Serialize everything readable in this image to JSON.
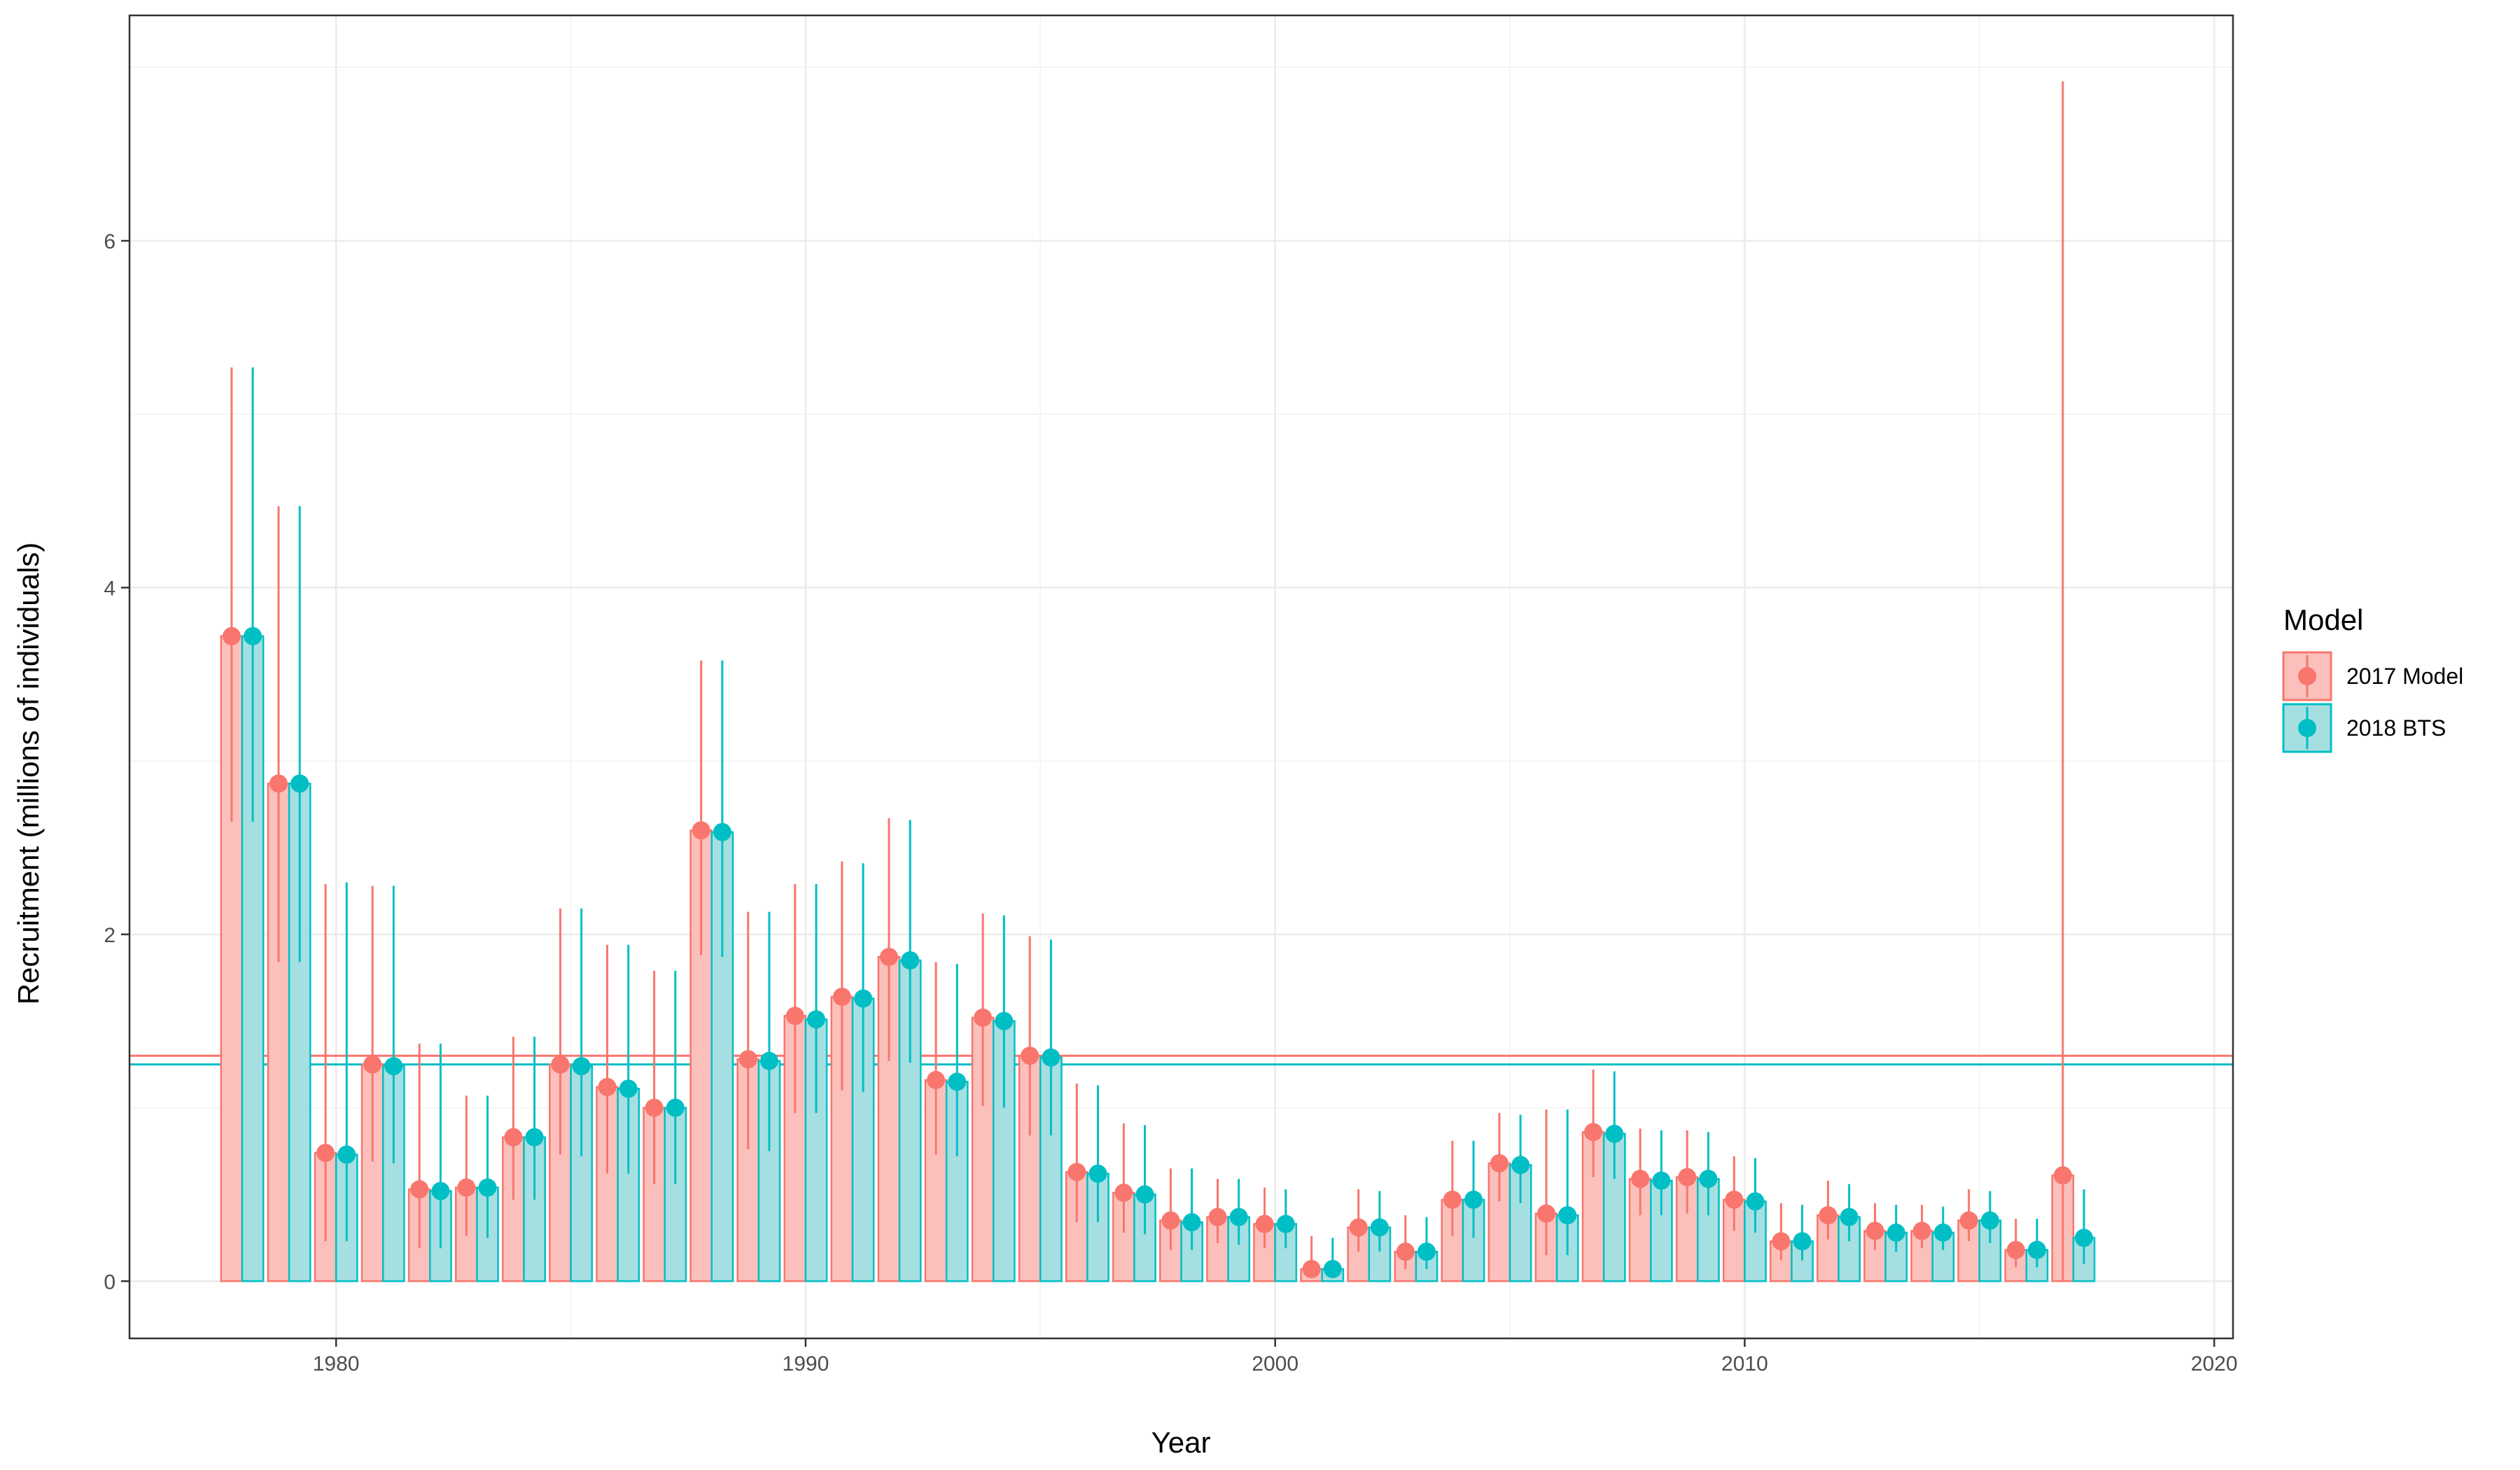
{
  "chart_data": {
    "type": "bar",
    "xlabel": "Year",
    "ylabel": "Recruitment (millions of individuals)",
    "xlim": [
      1975.6,
      2020.4
    ],
    "ylim": [
      -0.33,
      7.3
    ],
    "x_ticks": [
      1980,
      1990,
      2000,
      2010,
      2020
    ],
    "y_ticks": [
      0,
      2,
      4,
      6
    ],
    "grid": true,
    "legend": {
      "title": "Model",
      "position": "right"
    },
    "colors": {
      "2017 Model": "#F8766D",
      "2018 BTS": "#00BFC4"
    },
    "x": [
      1978,
      1979,
      1980,
      1981,
      1982,
      1983,
      1984,
      1985,
      1986,
      1987,
      1988,
      1989,
      1990,
      1991,
      1992,
      1993,
      1994,
      1995,
      1996,
      1997,
      1998,
      1999,
      2000,
      2001,
      2002,
      2003,
      2004,
      2005,
      2006,
      2007,
      2008,
      2009,
      2010,
      2011,
      2012,
      2013,
      2014,
      2015,
      2016,
      2017
    ],
    "series": [
      {
        "name": "2017 Model",
        "values": [
          3.72,
          2.87,
          0.74,
          1.25,
          0.53,
          0.54,
          0.83,
          1.25,
          1.12,
          1.0,
          2.6,
          1.28,
          1.53,
          1.64,
          1.87,
          1.16,
          1.52,
          1.3,
          0.63,
          0.51,
          0.35,
          0.37,
          0.33,
          0.07,
          0.31,
          0.17,
          0.47,
          0.68,
          0.39,
          0.86,
          0.59,
          0.6,
          0.47,
          0.23,
          0.38,
          0.29,
          0.29,
          0.35,
          0.18,
          0.61
        ],
        "lower": [
          2.65,
          1.84,
          0.23,
          0.69,
          0.19,
          0.26,
          0.47,
          0.73,
          0.62,
          0.56,
          1.88,
          0.76,
          0.97,
          1.1,
          1.27,
          0.73,
          1.01,
          0.84,
          0.34,
          0.28,
          0.18,
          0.22,
          0.19,
          0.02,
          0.17,
          0.07,
          0.26,
          0.46,
          0.15,
          0.6,
          0.38,
          0.39,
          0.29,
          0.12,
          0.24,
          0.18,
          0.19,
          0.23,
          0.08,
          0.0
        ],
        "upper": [
          5.27,
          4.47,
          2.29,
          2.28,
          1.37,
          1.07,
          1.41,
          2.15,
          1.94,
          1.79,
          3.58,
          2.13,
          2.29,
          2.42,
          2.67,
          1.84,
          2.12,
          1.99,
          1.14,
          0.91,
          0.65,
          0.59,
          0.54,
          0.26,
          0.53,
          0.38,
          0.81,
          0.97,
          0.99,
          1.22,
          0.88,
          0.87,
          0.72,
          0.45,
          0.58,
          0.45,
          0.44,
          0.53,
          0.36,
          6.92
        ],
        "mean": 1.3
      },
      {
        "name": "2018 BTS",
        "values": [
          3.72,
          2.87,
          0.73,
          1.24,
          0.52,
          0.54,
          0.83,
          1.24,
          1.11,
          1.0,
          2.59,
          1.27,
          1.51,
          1.63,
          1.85,
          1.15,
          1.5,
          1.29,
          0.62,
          0.5,
          0.34,
          0.37,
          0.33,
          0.07,
          0.31,
          0.17,
          0.47,
          0.67,
          0.38,
          0.85,
          0.58,
          0.59,
          0.46,
          0.23,
          0.37,
          0.28,
          0.28,
          0.35,
          0.18,
          0.25
        ],
        "lower": [
          2.65,
          1.84,
          0.23,
          0.68,
          0.19,
          0.25,
          0.47,
          0.72,
          0.62,
          0.56,
          1.87,
          0.75,
          0.97,
          1.09,
          1.26,
          0.72,
          1.0,
          0.84,
          0.34,
          0.27,
          0.18,
          0.21,
          0.19,
          0.02,
          0.17,
          0.07,
          0.25,
          0.45,
          0.15,
          0.59,
          0.38,
          0.38,
          0.28,
          0.12,
          0.23,
          0.17,
          0.18,
          0.22,
          0.08,
          0.1
        ],
        "upper": [
          5.27,
          4.47,
          2.3,
          2.28,
          1.37,
          1.07,
          1.41,
          2.15,
          1.94,
          1.79,
          3.58,
          2.13,
          2.29,
          2.41,
          2.66,
          1.83,
          2.11,
          1.97,
          1.13,
          0.9,
          0.65,
          0.59,
          0.53,
          0.25,
          0.52,
          0.37,
          0.81,
          0.96,
          0.99,
          1.21,
          0.87,
          0.86,
          0.71,
          0.44,
          0.56,
          0.44,
          0.43,
          0.52,
          0.36,
          0.53
        ],
        "mean": 1.25
      }
    ]
  }
}
